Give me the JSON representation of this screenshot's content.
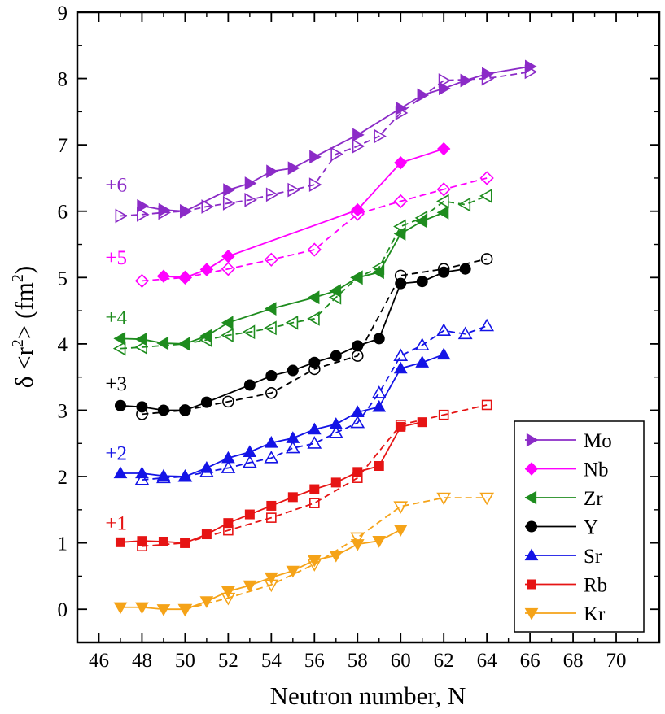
{
  "chart_data": {
    "type": "line",
    "xlabel": "Neutron number, N",
    "ylabel": "δ <r²> (fm²)",
    "ylabel_parts": {
      "a": "δ <r",
      "b": "2",
      "c": "> (fm",
      "d": "2",
      "e": ")"
    },
    "xlim": [
      45,
      72
    ],
    "ylim": [
      -0.5,
      9
    ],
    "xticks": [
      46,
      48,
      50,
      52,
      54,
      56,
      58,
      60,
      62,
      64,
      66,
      68,
      70
    ],
    "yticks": [
      0,
      1,
      2,
      3,
      4,
      5,
      6,
      7,
      8,
      9
    ],
    "grid": false,
    "legend_position": "bottom-right",
    "offset_labels": [
      {
        "text": "+6",
        "x": 46.8,
        "y": 6.3,
        "color": "#8B2BC7"
      },
      {
        "text": "+5",
        "x": 46.8,
        "y": 5.2,
        "color": "#FF00FF"
      },
      {
        "text": "+4",
        "x": 46.8,
        "y": 4.3,
        "color": "#1E8C1E"
      },
      {
        "text": "+3",
        "x": 46.8,
        "y": 3.3,
        "color": "#000000"
      },
      {
        "text": "+2",
        "x": 46.8,
        "y": 2.25,
        "color": "#1414E6"
      },
      {
        "text": "+1",
        "x": 46.8,
        "y": 1.2,
        "color": "#E61414"
      }
    ],
    "series": [
      {
        "name": "Mo",
        "color": "#8B2BC7",
        "marker": "triangle-right",
        "solid": {
          "x": [
            48,
            49,
            50,
            52,
            53,
            54,
            55,
            56,
            58,
            60,
            61,
            62,
            63,
            64,
            66
          ],
          "y": [
            6.08,
            6.02,
            6.0,
            6.32,
            6.42,
            6.6,
            6.65,
            6.82,
            7.15,
            7.55,
            7.75,
            7.85,
            7.97,
            8.07,
            8.18
          ]
        },
        "dashed": {
          "x": [
            47,
            48,
            49,
            50,
            51,
            52,
            53,
            54,
            55,
            56,
            57,
            58,
            59,
            60,
            62,
            64,
            66
          ],
          "y": [
            5.93,
            5.95,
            5.98,
            6.0,
            6.07,
            6.12,
            6.17,
            6.25,
            6.32,
            6.4,
            6.86,
            6.98,
            7.13,
            7.48,
            7.97,
            8.0,
            8.1
          ]
        }
      },
      {
        "name": "Nb",
        "color": "#FF00FF",
        "marker": "diamond",
        "solid": {
          "x": [
            49,
            50,
            51,
            52,
            58,
            60,
            62
          ],
          "y": [
            5.02,
            5.0,
            5.12,
            5.32,
            6.02,
            6.73,
            6.94
          ]
        },
        "dashed": {
          "x": [
            48,
            50,
            52,
            54,
            56,
            58,
            60,
            62,
            64
          ],
          "y": [
            4.95,
            5.0,
            5.13,
            5.27,
            5.42,
            5.96,
            6.15,
            6.33,
            6.5
          ]
        }
      },
      {
        "name": "Zr",
        "color": "#1E8C1E",
        "marker": "triangle-left",
        "solid": {
          "x": [
            47,
            48,
            49,
            50,
            51,
            52,
            54,
            56,
            57,
            58,
            59,
            60,
            61,
            62
          ],
          "y": [
            4.08,
            4.07,
            4.01,
            4.0,
            4.12,
            4.32,
            4.53,
            4.7,
            4.8,
            5.0,
            5.08,
            5.66,
            5.85,
            5.98
          ]
        },
        "dashed": {
          "x": [
            47,
            48,
            50,
            51,
            52,
            53,
            54,
            55,
            56,
            57,
            58,
            59,
            60,
            61,
            62,
            63,
            64
          ],
          "y": [
            3.93,
            3.95,
            4.0,
            4.06,
            4.13,
            4.18,
            4.24,
            4.32,
            4.38,
            4.7,
            5.0,
            5.15,
            5.77,
            5.9,
            6.15,
            6.1,
            6.23
          ]
        }
      },
      {
        "name": "Y",
        "color": "#000000",
        "marker": "circle",
        "solid": {
          "x": [
            47,
            48,
            49,
            50,
            51,
            53,
            54,
            55,
            56,
            57,
            58,
            59,
            60,
            61,
            62,
            63
          ],
          "y": [
            3.07,
            3.05,
            3.0,
            3.0,
            3.12,
            3.38,
            3.52,
            3.6,
            3.72,
            3.82,
            3.97,
            4.08,
            4.91,
            4.94,
            5.08,
            5.13
          ]
        },
        "dashed": {
          "x": [
            48,
            50,
            52,
            54,
            56,
            58,
            60,
            62,
            64
          ],
          "y": [
            2.94,
            3.0,
            3.13,
            3.26,
            3.62,
            3.82,
            5.03,
            5.13,
            5.28
          ]
        }
      },
      {
        "name": "Sr",
        "color": "#1414E6",
        "marker": "triangle-up",
        "solid": {
          "x": [
            47,
            48,
            49,
            50,
            51,
            52,
            53,
            54,
            55,
            56,
            57,
            58,
            59,
            60,
            61,
            62
          ],
          "y": [
            2.05,
            2.05,
            2.01,
            2.0,
            2.13,
            2.28,
            2.37,
            2.51,
            2.58,
            2.71,
            2.79,
            2.97,
            3.05,
            3.63,
            3.72,
            3.84
          ]
        },
        "dashed": {
          "x": [
            48,
            49,
            50,
            51,
            52,
            53,
            54,
            55,
            56,
            57,
            58,
            59,
            60,
            61,
            62,
            63,
            64
          ],
          "y": [
            1.95,
            1.98,
            2.0,
            2.07,
            2.13,
            2.21,
            2.28,
            2.43,
            2.5,
            2.66,
            2.81,
            3.26,
            3.82,
            3.98,
            4.2,
            4.15,
            4.27
          ]
        }
      },
      {
        "name": "Rb",
        "color": "#E61414",
        "marker": "square",
        "solid": {
          "x": [
            47,
            48,
            49,
            50,
            51,
            52,
            53,
            54,
            55,
            56,
            57,
            58,
            59,
            60,
            61
          ],
          "y": [
            1.01,
            1.03,
            1.02,
            1.0,
            1.13,
            1.3,
            1.43,
            1.56,
            1.69,
            1.81,
            1.91,
            2.07,
            2.16,
            2.75,
            2.82
          ]
        },
        "dashed": {
          "x": [
            48,
            50,
            52,
            54,
            56,
            58,
            60,
            62,
            64
          ],
          "y": [
            0.95,
            1.0,
            1.19,
            1.38,
            1.6,
            1.98,
            2.78,
            2.93,
            3.08
          ]
        }
      },
      {
        "name": "Kr",
        "color": "#F5A318",
        "marker": "triangle-down",
        "solid": {
          "x": [
            47,
            48,
            49,
            50,
            51,
            52,
            53,
            54,
            55,
            56,
            57,
            58,
            59,
            60
          ],
          "y": [
            0.03,
            0.03,
            0.0,
            0.0,
            0.12,
            0.27,
            0.36,
            0.48,
            0.58,
            0.74,
            0.81,
            0.98,
            1.03,
            1.2
          ]
        },
        "dashed": {
          "x": [
            50,
            52,
            54,
            56,
            58,
            60,
            62,
            64
          ],
          "y": [
            0.0,
            0.17,
            0.37,
            0.68,
            1.08,
            1.55,
            1.68,
            1.68
          ]
        }
      }
    ]
  }
}
